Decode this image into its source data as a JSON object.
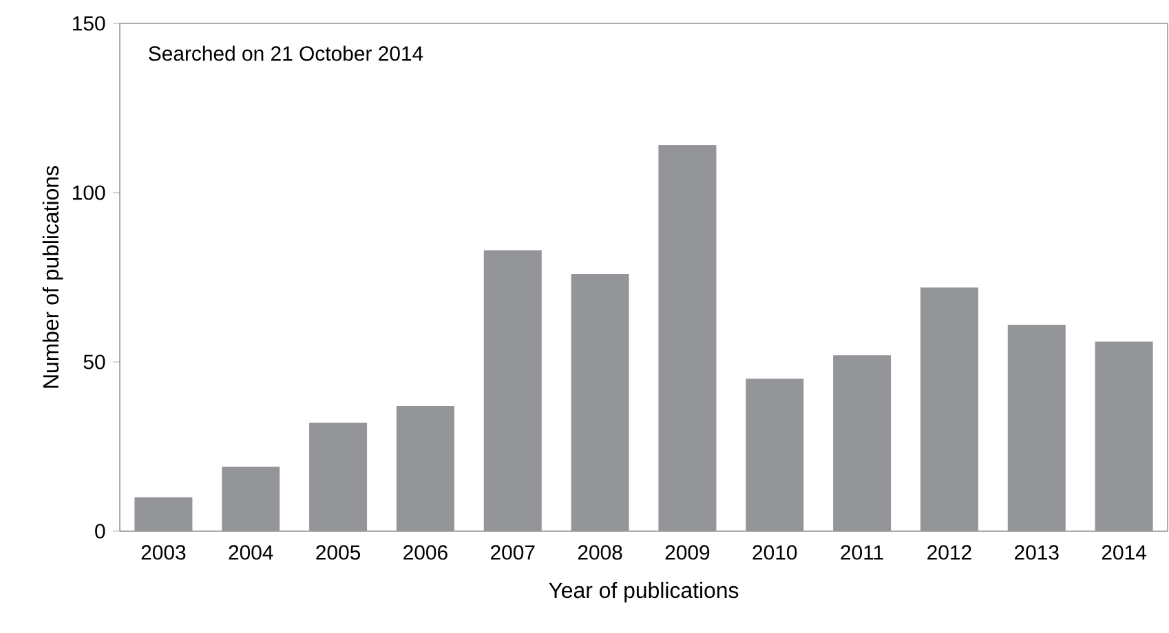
{
  "chart_data": {
    "type": "bar",
    "xlabel": "Year of publications",
    "ylabel": "Number of publications",
    "categories": [
      "2003",
      "2004",
      "2005",
      "2006",
      "2007",
      "2008",
      "2009",
      "2010",
      "2011",
      "2012",
      "2013",
      "2014"
    ],
    "values": [
      10,
      19,
      32,
      37,
      83,
      76,
      114,
      45,
      52,
      72,
      61,
      56
    ],
    "color": "#939598",
    "ylim": [
      0,
      150
    ],
    "yticks": [
      0,
      50,
      100,
      150
    ],
    "annotations": [
      "Searched on 21 October 2014"
    ]
  }
}
